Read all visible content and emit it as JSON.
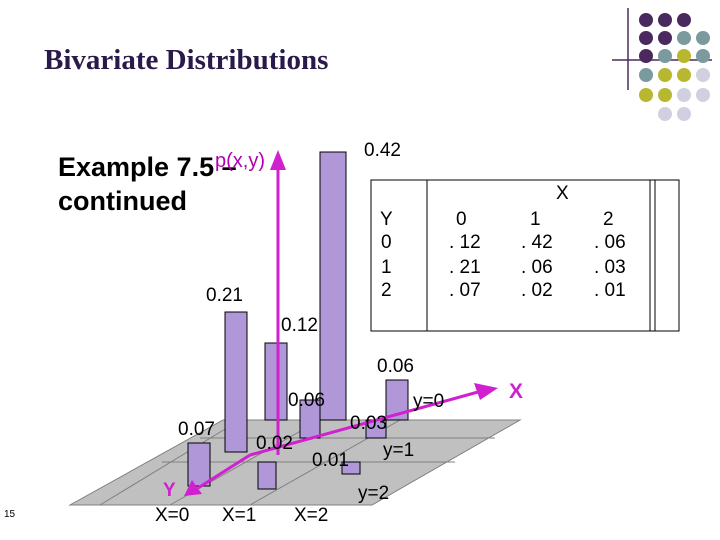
{
  "slide": {
    "title": "Bivariate Distributions",
    "example_line1": "Example 7.5 –",
    "example_line2": "continued",
    "pxy_label": "p(x,y)",
    "page_number": "15"
  },
  "table": {
    "x_header": "X",
    "y_header": "Y",
    "x_values": [
      "0",
      "1",
      "2"
    ],
    "y_values": [
      "0",
      "1",
      "2"
    ],
    "rows": [
      [
        ". 12",
        ". 42",
        ". 06"
      ],
      [
        ". 21",
        ". 06",
        ". 03"
      ],
      [
        ". 07",
        ". 02",
        ". 01"
      ]
    ]
  },
  "plot": {
    "bar_labels": {
      "b042": "0.42",
      "b021": "0.21",
      "b012": "0.12",
      "b006a": "0.06",
      "b006b": "0.06",
      "b007": "0.07",
      "b002": "0.02",
      "b001": "0.01",
      "b003": "0.03"
    },
    "axis_labels": {
      "y0": "y=0",
      "y1": "y=1",
      "y2": "y=2",
      "x0": "X=0",
      "x1": "X=1",
      "x2": "X=2",
      "y_axis": "Y",
      "x_axis": "X"
    }
  },
  "colors": {
    "purple_dot": "#4a2a5e",
    "teal_dot": "#7a9a9e",
    "olive_dot": "#b8b830",
    "lavender_dot": "#d0d0e0",
    "bar_fill": "#b098d8",
    "arrow": "#d020d0",
    "plane": "#c0c0c0"
  }
}
